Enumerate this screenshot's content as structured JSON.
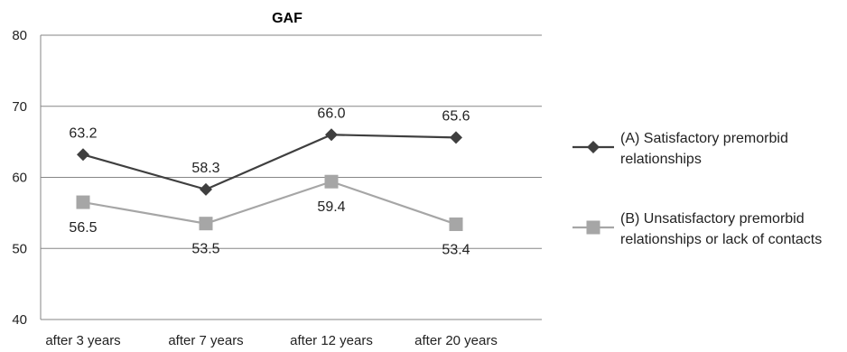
{
  "chart_data": {
    "type": "line",
    "title": "GAF",
    "categories": [
      "after 3 years",
      "after 7 years",
      "after 12 years",
      "after 20 years"
    ],
    "ylim": [
      40,
      80
    ],
    "yticks": [
      40,
      50,
      60,
      70,
      80
    ],
    "grid": true,
    "legend_position": "right",
    "series": [
      {
        "name": "(A) Satisfactory premorbid relationships",
        "legend_lines": [
          "(A) Satisfactory premorbid",
          "relationships"
        ],
        "values": [
          63.2,
          58.3,
          66.0,
          65.6
        ],
        "labels": [
          "63.2",
          "58.3",
          "66.0",
          "65.6"
        ],
        "label_position": [
          "above",
          "above",
          "above",
          "above"
        ],
        "color": "#3f3f3f",
        "marker": "diamond"
      },
      {
        "name": "(B) Unsatisfactory premorbid relationships or lack of contacts",
        "legend_lines": [
          "(B) Unsatisfactory premorbid",
          "relationships or lack of contacts"
        ],
        "values": [
          56.5,
          53.5,
          59.4,
          53.4
        ],
        "labels": [
          "56.5",
          "53.5",
          "59.4",
          "53.4"
        ],
        "label_position": [
          "below",
          "below",
          "below",
          "below"
        ],
        "color": "#a6a6a6",
        "marker": "square"
      }
    ]
  }
}
